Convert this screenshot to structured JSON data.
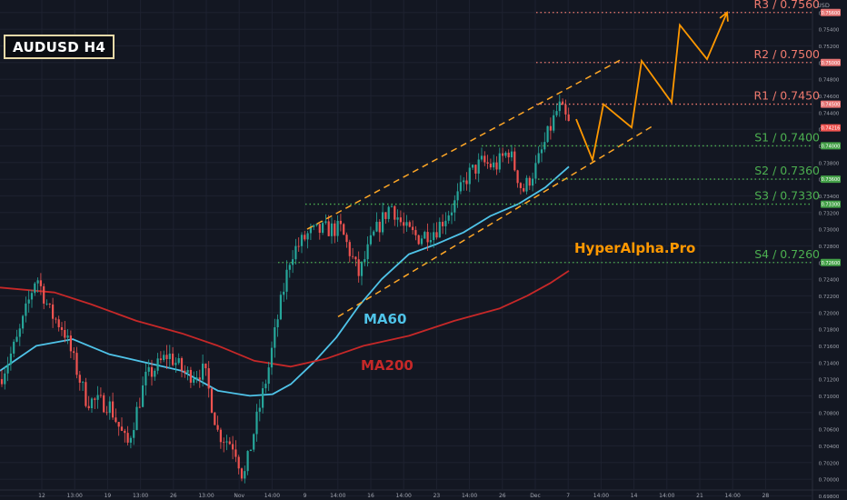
{
  "chart_data": {
    "type": "candlestick",
    "title": "AUDUSD H4",
    "currency": "USD",
    "watermark": "HyperAlpha.Pro",
    "ylim": [
      0.6975,
      0.7575
    ],
    "y_ticks": [
      "0.75600",
      "0.75400",
      "0.75200",
      "0.75000",
      "0.74800",
      "0.74600",
      "0.74400",
      "0.74200",
      "0.74000",
      "0.73800",
      "0.73600",
      "0.73400",
      "0.73200",
      "0.73000",
      "0.72800",
      "0.72600",
      "0.72400",
      "0.72200",
      "0.72000",
      "0.71800",
      "0.71600",
      "0.71400",
      "0.71200",
      "0.71000",
      "0.70800",
      "0.70600",
      "0.70400",
      "0.70200",
      "0.70000",
      "0.69800"
    ],
    "x_ticks": [
      "12",
      "13:00",
      "19",
      "13:00",
      "26",
      "13:00",
      "Nov",
      "14:00",
      "9",
      "14:00",
      "16",
      "14:00",
      "23",
      "14:00",
      "26",
      "Dec",
      "7",
      "14:00",
      "14",
      "14:00",
      "21",
      "14:00",
      "28"
    ],
    "last_price": "0.74216",
    "levels": [
      {
        "name": "R3",
        "label": "R3 / 0.7560",
        "value": 0.756,
        "tag": "0.75600",
        "type": "resistance",
        "color": "#f07a6e"
      },
      {
        "name": "R2",
        "label": "R2 / 0.7500",
        "value": 0.75,
        "tag": "0.75000",
        "type": "resistance",
        "color": "#f07a6e"
      },
      {
        "name": "R1",
        "label": "R1 / 0.7450",
        "value": 0.745,
        "tag": "0.74500",
        "type": "resistance",
        "color": "#f07a6e"
      },
      {
        "name": "S1",
        "label": "S1 / 0.7400",
        "value": 0.74,
        "tag": "0.74000",
        "type": "support",
        "color": "#4caf50"
      },
      {
        "name": "S2",
        "label": "S2 / 0.7360",
        "value": 0.736,
        "tag": "0.73600",
        "type": "support",
        "color": "#4caf50"
      },
      {
        "name": "S3",
        "label": "S3 / 0.7330",
        "value": 0.733,
        "tag": "0.73300",
        "type": "support",
        "color": "#4caf50"
      },
      {
        "name": "S4",
        "label": "S4 / 0.7260",
        "value": 0.726,
        "tag": "0.72600",
        "type": "support",
        "color": "#4caf50"
      }
    ],
    "series": [
      {
        "name": "MA60",
        "color": "#4fc3e8",
        "points": [
          [
            0,
            0.713
          ],
          [
            40,
            0.716
          ],
          [
            80,
            0.7168
          ],
          [
            120,
            0.715
          ],
          [
            160,
            0.714
          ],
          [
            200,
            0.713
          ],
          [
            240,
            0.7106
          ],
          [
            275,
            0.71
          ],
          [
            300,
            0.7102
          ],
          [
            320,
            0.7114
          ],
          [
            345,
            0.714
          ],
          [
            370,
            0.717
          ],
          [
            395,
            0.7208
          ],
          [
            420,
            0.724
          ],
          [
            450,
            0.727
          ],
          [
            480,
            0.7282
          ],
          [
            510,
            0.7296
          ],
          [
            540,
            0.7316
          ],
          [
            570,
            0.733
          ],
          [
            600,
            0.735
          ],
          [
            626,
            0.7375
          ]
        ]
      },
      {
        "name": "MA200",
        "color": "#c62828",
        "points": [
          [
            0,
            0.723
          ],
          [
            60,
            0.7224
          ],
          [
            100,
            0.721
          ],
          [
            150,
            0.719
          ],
          [
            200,
            0.7175
          ],
          [
            240,
            0.716
          ],
          [
            280,
            0.7142
          ],
          [
            320,
            0.7135
          ],
          [
            360,
            0.7145
          ],
          [
            400,
            0.716
          ],
          [
            450,
            0.7172
          ],
          [
            500,
            0.719
          ],
          [
            550,
            0.7205
          ],
          [
            580,
            0.722
          ],
          [
            605,
            0.7235
          ],
          [
            626,
            0.725
          ]
        ]
      }
    ],
    "channel": {
      "color": "#ffa726",
      "upper": [
        [
          338,
          0.73
        ],
        [
          686,
          0.7505
        ]
      ],
      "lower": [
        [
          372,
          0.7195
        ],
        [
          720,
          0.7425
        ]
      ]
    },
    "projection": {
      "color": "#ff9800",
      "points": [
        [
          634,
          0.7432
        ],
        [
          652,
          0.7383
        ],
        [
          664,
          0.745
        ],
        [
          695,
          0.7422
        ],
        [
          706,
          0.7502
        ],
        [
          739,
          0.7452
        ],
        [
          748,
          0.7545
        ],
        [
          778,
          0.7504
        ],
        [
          800,
          0.756
        ]
      ]
    }
  }
}
